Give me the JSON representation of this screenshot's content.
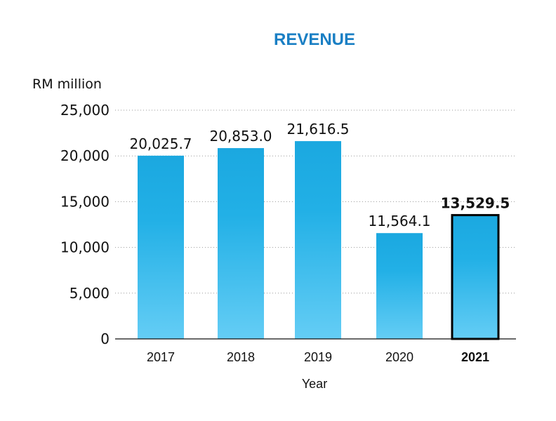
{
  "chart_data": {
    "type": "bar",
    "title": "REVENUE",
    "ylabel": "RM million",
    "xlabel": "Year",
    "categories": [
      "2017",
      "2018",
      "2019",
      "2020",
      "2021"
    ],
    "values": [
      20025.7,
      20853.0,
      21616.5,
      11564.1,
      13529.5
    ],
    "value_labels": [
      "20,025.7",
      "20,853.0",
      "21,616.5",
      "11,564.1",
      "13,529.5"
    ],
    "ylim": [
      0,
      25000
    ],
    "yticks": [
      0,
      5000,
      10000,
      15000,
      20000,
      25000
    ],
    "ytick_labels": [
      "0",
      "5,000",
      "10,000",
      "15,000",
      "20,000",
      "25,000"
    ],
    "grid": true,
    "highlight": "2021",
    "colors": {
      "bar_top": "#1ba8e0",
      "bar_bottom": "#64cdf5",
      "title": "#1a7fc4",
      "highlight_outline": "#000000"
    }
  }
}
